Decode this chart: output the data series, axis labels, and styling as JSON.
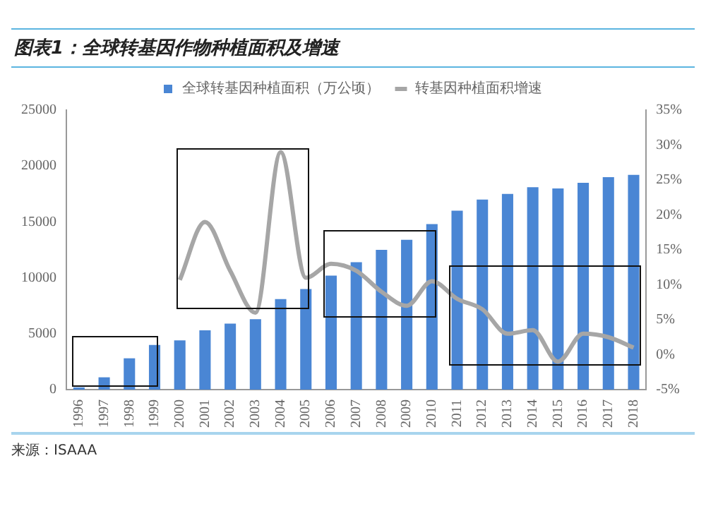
{
  "chart_data": {
    "type": "bar",
    "title": "图表1：全球转基因作物种植面积及增速",
    "categories": [
      "1996",
      "1997",
      "1998",
      "1999",
      "2000",
      "2001",
      "2002",
      "2003",
      "2004",
      "2005",
      "2006",
      "2007",
      "2008",
      "2009",
      "2010",
      "2011",
      "2012",
      "2013",
      "2014",
      "2015",
      "2016",
      "2017",
      "2018"
    ],
    "series": [
      {
        "name": "全球转基因种植面积（万公顷）",
        "color": "#4a86d4",
        "values": [
          200,
          1100,
          2800,
          4000,
          4400,
          5300,
          5900,
          6300,
          8100,
          9000,
          10200,
          11400,
          12500,
          13400,
          14800,
          16000,
          17000,
          17500,
          18100,
          18000,
          18500,
          19000,
          19200
        ]
      },
      {
        "name": "转基因种植面积增速",
        "type": "line",
        "axis": "y2",
        "color": "#a6a6a6",
        "values": [
          null,
          null,
          null,
          null,
          10.7,
          19,
          12,
          6,
          29,
          11,
          13,
          12,
          9,
          7,
          10.5,
          8,
          6.5,
          3,
          3.5,
          -1,
          3,
          2.5,
          1
        ]
      }
    ],
    "ylim": [
      0,
      25000
    ],
    "yticks": [
      0,
      5000,
      10000,
      15000,
      20000,
      25000
    ],
    "y2lim": [
      -5,
      35
    ],
    "y2ticks": [
      {
        "value": -5,
        "label": "-5%"
      },
      {
        "value": 0,
        "label": "0%"
      },
      {
        "value": 5,
        "label": "5%"
      },
      {
        "value": 10,
        "label": "10%"
      },
      {
        "value": 15,
        "label": "15%"
      },
      {
        "value": 20,
        "label": "20%"
      },
      {
        "value": 25,
        "label": "25%"
      },
      {
        "value": 30,
        "label": "30%"
      },
      {
        "value": 35,
        "label": "35%"
      }
    ],
    "legend": "top",
    "grid": false,
    "marker": "none",
    "annotations": [
      "来源：ISAAA"
    ]
  }
}
